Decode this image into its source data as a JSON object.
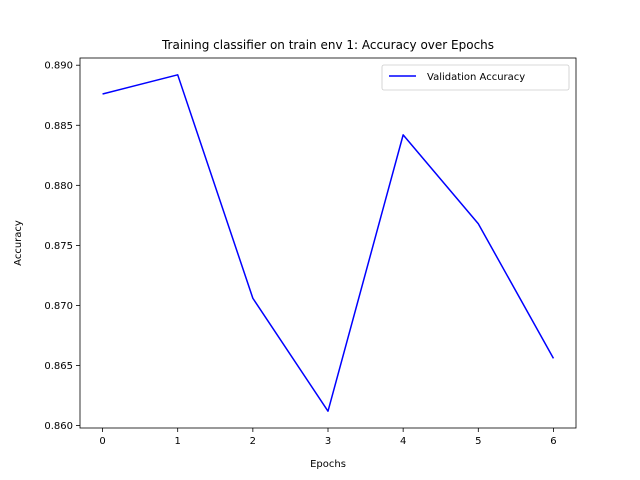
{
  "chart_data": {
    "type": "line",
    "title": "Training classifier on train env 1: Accuracy over Epochs",
    "xlabel": "Epochs",
    "ylabel": "Accuracy",
    "x": [
      0,
      1,
      2,
      3,
      4,
      5,
      6
    ],
    "xticks": [
      "0",
      "1",
      "2",
      "3",
      "4",
      "5",
      "6"
    ],
    "yticks": [
      "0.860",
      "0.865",
      "0.870",
      "0.875",
      "0.880",
      "0.885",
      "0.890"
    ],
    "xlim": [
      -0.3,
      6.3
    ],
    "ylim": [
      0.8598,
      0.8906
    ],
    "grid": false,
    "legend_position": "upper right",
    "series": [
      {
        "name": "Validation Accuracy",
        "color": "#0000ff",
        "values": [
          0.8876,
          0.8892,
          0.8706,
          0.8612,
          0.8842,
          0.8768,
          0.8656
        ]
      }
    ]
  }
}
